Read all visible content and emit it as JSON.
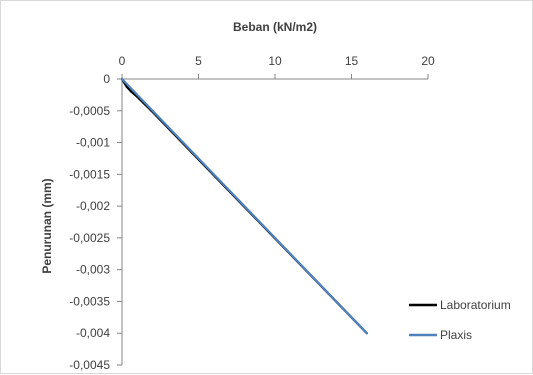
{
  "chart_data": {
    "type": "line",
    "xlabel": "Beban (kN/m2)",
    "ylabel": "Penurunan (mm)",
    "xlim": [
      0,
      20
    ],
    "ylim": [
      -0.0045,
      0
    ],
    "x_ticks": [
      0,
      5,
      10,
      15,
      20
    ],
    "x_tick_labels": [
      "0",
      "5",
      "10",
      "15",
      "20"
    ],
    "y_ticks": [
      0,
      -0.0005,
      -0.001,
      -0.0015,
      -0.002,
      -0.0025,
      -0.003,
      -0.0035,
      -0.004,
      -0.0045
    ],
    "y_tick_labels": [
      "0",
      "-0,0005",
      "-0,001",
      "-0,0015",
      "-0,002",
      "-0,0025",
      "-0,003",
      "-0,0035",
      "-0,004",
      "-0,0045"
    ],
    "x_axis_position": "top",
    "grid": false,
    "legend_position": "bottom-right",
    "series": [
      {
        "name": "Laboratorium",
        "color": "#000000",
        "points": [
          [
            0,
            0
          ],
          [
            0.3,
            -0.00012
          ],
          [
            0.6,
            -0.0002
          ],
          [
            1.0,
            -0.00028
          ],
          [
            2.0,
            -0.00052
          ],
          [
            16,
            -0.004
          ]
        ]
      },
      {
        "name": "Plaxis",
        "color": "#4f81bd",
        "points": [
          [
            0,
            0
          ],
          [
            2.0,
            -0.0005
          ],
          [
            16,
            -0.004
          ]
        ]
      }
    ]
  }
}
